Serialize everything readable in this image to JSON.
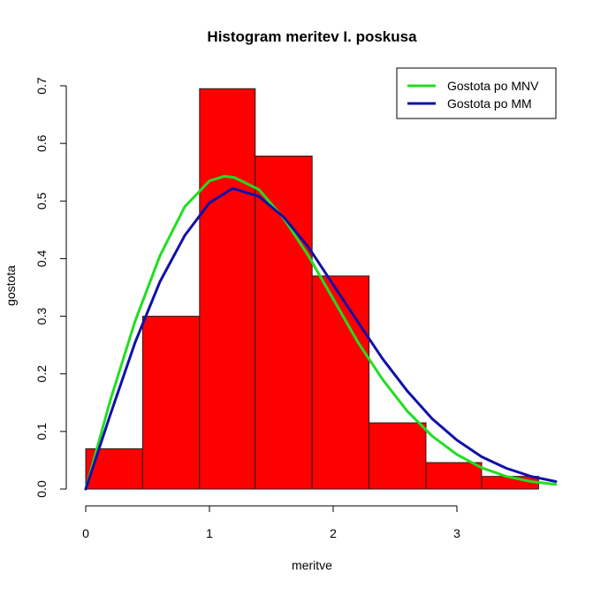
{
  "chart_data": {
    "type": "bar",
    "title": "Histogram meritev I. poskusa",
    "xlabel": "meritve",
    "ylabel": "gostota",
    "xlim": [
      0,
      3.8
    ],
    "ylim": [
      0,
      0.7
    ],
    "x_ticks": [
      0,
      1,
      2,
      3
    ],
    "x_tick_labels": [
      "0",
      "1",
      "2",
      "3"
    ],
    "y_ticks": [
      0,
      0.1,
      0.2,
      0.3,
      0.4,
      0.5,
      0.6,
      0.7
    ],
    "y_tick_labels": [
      "0.0",
      "0.1",
      "0.2",
      "0.3",
      "0.4",
      "0.5",
      "0.6",
      "0.7"
    ],
    "grid": false,
    "legend_position": "top-right",
    "bar_color": "#ff0000",
    "bins": [
      {
        "from": 0.0,
        "to": 0.46,
        "density": 0.07
      },
      {
        "from": 0.46,
        "to": 0.92,
        "density": 0.3
      },
      {
        "from": 0.92,
        "to": 1.37,
        "density": 0.695
      },
      {
        "from": 1.37,
        "to": 1.83,
        "density": 0.578
      },
      {
        "from": 1.83,
        "to": 2.29,
        "density": 0.37
      },
      {
        "from": 2.29,
        "to": 2.75,
        "density": 0.115
      },
      {
        "from": 2.75,
        "to": 3.2,
        "density": 0.046
      },
      {
        "from": 3.2,
        "to": 3.66,
        "density": 0.022
      }
    ],
    "series": [
      {
        "name": "Gostota po MNV",
        "type": "line",
        "color": "#22dd22",
        "x": [
          0,
          0.2,
          0.4,
          0.6,
          0.8,
          1.0,
          1.12,
          1.2,
          1.4,
          1.6,
          1.8,
          2.0,
          2.2,
          2.4,
          2.6,
          2.8,
          3.0,
          3.2,
          3.4,
          3.6,
          3.8
        ],
        "y": [
          0,
          0.155,
          0.292,
          0.405,
          0.49,
          0.535,
          0.543,
          0.541,
          0.52,
          0.47,
          0.405,
          0.33,
          0.255,
          0.19,
          0.135,
          0.092,
          0.06,
          0.037,
          0.022,
          0.013,
          0.008
        ]
      },
      {
        "name": "Gostota po MM",
        "type": "line",
        "color": "#1010aa",
        "x": [
          0,
          0.2,
          0.4,
          0.6,
          0.8,
          1.0,
          1.18,
          1.2,
          1.4,
          1.6,
          1.8,
          2.0,
          2.2,
          2.4,
          2.6,
          2.8,
          3.0,
          3.2,
          3.4,
          3.6,
          3.8
        ],
        "y": [
          0,
          0.13,
          0.255,
          0.36,
          0.44,
          0.497,
          0.521,
          0.521,
          0.508,
          0.472,
          0.42,
          0.355,
          0.29,
          0.226,
          0.17,
          0.122,
          0.085,
          0.056,
          0.036,
          0.022,
          0.013
        ]
      }
    ]
  }
}
